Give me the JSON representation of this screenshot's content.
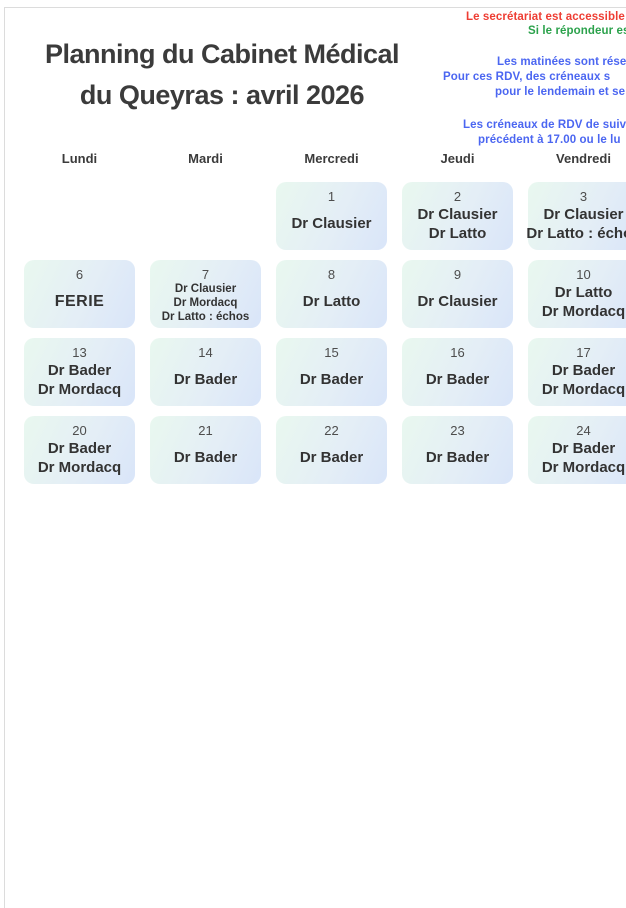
{
  "title": {
    "line1": "Planning du Cabinet Médical",
    "line2": "du Queyras : avril 2026"
  },
  "notices": {
    "secretariat_red": "Le secrétariat est accessible",
    "repondeur_green": "Si le répondeur es",
    "matinees_blue_line1": "Les matinées sont rése",
    "matinees_blue_line2": "Pour ces RDV, des créneaux s",
    "matinees_blue_line3": "pour le lendemain et se",
    "creneaux_blue_line1": "Les créneaux de RDV de suiv",
    "creneaux_blue_line2": "précédent à 17.00 ou le lu"
  },
  "colors": {
    "red": "#ee3d33",
    "green": "#2ca24c",
    "blue": "#4b66f1",
    "cell_gradient_start": "#e9f8ef",
    "cell_gradient_end": "#d9e5f9"
  },
  "calendar": {
    "day_headers": [
      "Lundi",
      "Mardi",
      "Mercredi",
      "Jeudi",
      "Vendredi"
    ],
    "weeks": [
      [
        null,
        null,
        {
          "date": "1",
          "lines": [
            "Dr Clausier"
          ]
        },
        {
          "date": "2",
          "lines": [
            "Dr Clausier",
            "Dr Latto"
          ]
        },
        {
          "date": "3",
          "lines": [
            "Dr Clausier",
            "Dr Latto : échos"
          ]
        }
      ],
      [
        {
          "date": "6",
          "lines": [
            "FERIE"
          ],
          "ferie": true
        },
        {
          "date": "7",
          "lines": [
            "Dr Clausier",
            "Dr Mordacq",
            "Dr Latto : échos"
          ],
          "small": true
        },
        {
          "date": "8",
          "lines": [
            "Dr Latto"
          ]
        },
        {
          "date": "9",
          "lines": [
            "Dr Clausier"
          ]
        },
        {
          "date": "10",
          "lines": [
            "Dr Latto",
            "Dr Mordacq"
          ]
        }
      ],
      [
        {
          "date": "13",
          "lines": [
            "Dr Bader",
            "Dr Mordacq"
          ]
        },
        {
          "date": "14",
          "lines": [
            "Dr Bader"
          ]
        },
        {
          "date": "15",
          "lines": [
            "Dr Bader"
          ]
        },
        {
          "date": "16",
          "lines": [
            "Dr Bader"
          ]
        },
        {
          "date": "17",
          "lines": [
            "Dr Bader",
            "Dr Mordacq"
          ]
        }
      ],
      [
        {
          "date": "20",
          "lines": [
            "Dr Bader",
            "Dr Mordacq"
          ]
        },
        {
          "date": "21",
          "lines": [
            "Dr Bader"
          ]
        },
        {
          "date": "22",
          "lines": [
            "Dr Bader"
          ]
        },
        {
          "date": "23",
          "lines": [
            "Dr Bader"
          ]
        },
        {
          "date": "24",
          "lines": [
            "Dr Bader",
            "Dr Mordacq"
          ]
        }
      ]
    ]
  }
}
